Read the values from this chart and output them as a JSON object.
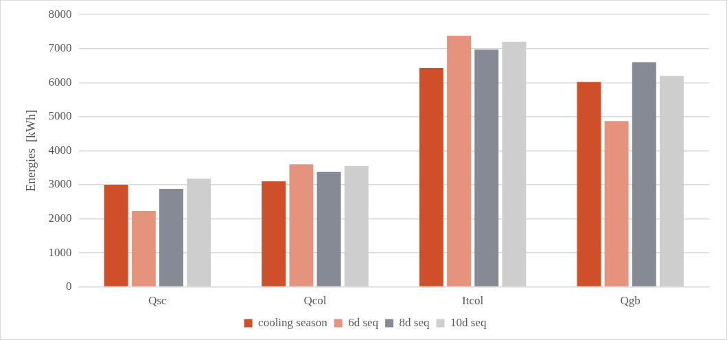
{
  "chart_data": {
    "type": "bar",
    "ylabel": "Energies  [kWh]",
    "categories": [
      "Qsc",
      "Qcol",
      "Itcol",
      "Qgb"
    ],
    "series": [
      {
        "name": "cooling season",
        "color": "#cf4f29",
        "values": [
          3000,
          3100,
          6430,
          6020
        ]
      },
      {
        "name": "6d seq",
        "color": "#e5937d",
        "values": [
          2230,
          3600,
          7380,
          4870
        ]
      },
      {
        "name": "8d seq",
        "color": "#858a94",
        "values": [
          2880,
          3380,
          6970,
          6600
        ]
      },
      {
        "name": "10d seq",
        "color": "#cdcecd",
        "values": [
          3180,
          3550,
          7200,
          6200
        ]
      }
    ],
    "ylim": [
      0,
      8000
    ],
    "yticks": [
      0,
      1000,
      2000,
      3000,
      4000,
      5000,
      6000,
      7000,
      8000
    ],
    "grid": "y",
    "legend": "bottom"
  }
}
